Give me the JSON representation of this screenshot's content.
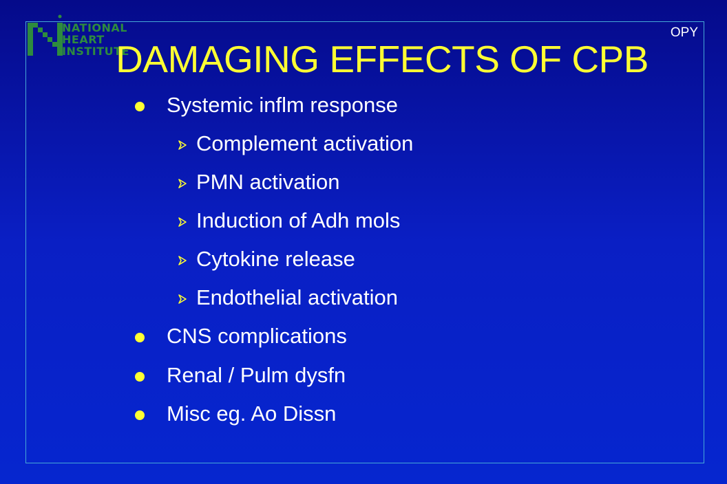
{
  "logo": {
    "line1": "NATIONAL",
    "line2": "HEART",
    "line3": "INSTITUTE"
  },
  "corner_tag": "OPY",
  "title": "DAMAGING EFFECTS OF CPB",
  "bullets": [
    {
      "text": "Systemic inflm response",
      "sub": [
        "Complement activation",
        "PMN activation",
        "Induction of Adh mols",
        "Cytokine release",
        "Endothelial activation"
      ]
    },
    {
      "text": "CNS complications",
      "sub": []
    },
    {
      "text": "Renal / Pulm dysfn",
      "sub": []
    },
    {
      "text": "Misc eg. Ao Dissn",
      "sub": []
    }
  ],
  "colors": {
    "background_top": "#050a8a",
    "background_bottom": "#0626cf",
    "title": "#ffff33",
    "bullet_dot": "#ffff33",
    "body_text": "#ffffff",
    "frame_border": "#46a9d6",
    "logo_green": "#2e8b3e"
  },
  "icons": {
    "bullet": "dot-bullet-icon",
    "sub_bullet": "arrow-bullet-icon"
  }
}
